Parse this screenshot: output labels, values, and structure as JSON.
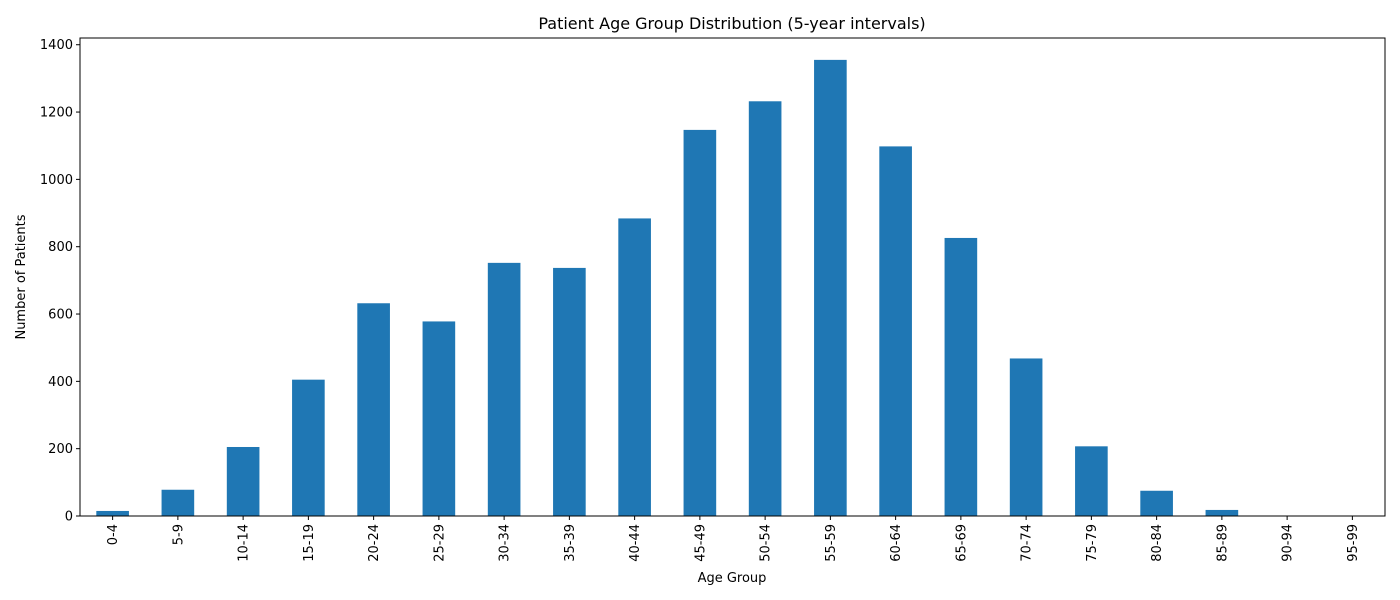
{
  "chart_data": {
    "type": "bar",
    "title": "Patient Age Group Distribution (5-year intervals)",
    "xlabel": "Age Group",
    "ylabel": "Number of Patients",
    "categories": [
      "0-4",
      "5-9",
      "10-14",
      "15-19",
      "20-24",
      "25-29",
      "30-34",
      "35-39",
      "40-44",
      "45-49",
      "50-54",
      "55-59",
      "60-64",
      "65-69",
      "70-74",
      "75-79",
      "80-84",
      "85-89",
      "90-94",
      "95-99"
    ],
    "values": [
      15,
      78,
      205,
      405,
      632,
      578,
      752,
      737,
      884,
      1147,
      1232,
      1355,
      1098,
      826,
      468,
      207,
      75,
      18,
      0,
      0
    ],
    "ylim": [
      0,
      1420
    ],
    "yticks": [
      0,
      200,
      400,
      600,
      800,
      1000,
      1200,
      1400
    ],
    "bar_color": "#1f77b4",
    "grid": false,
    "legend": "none"
  }
}
